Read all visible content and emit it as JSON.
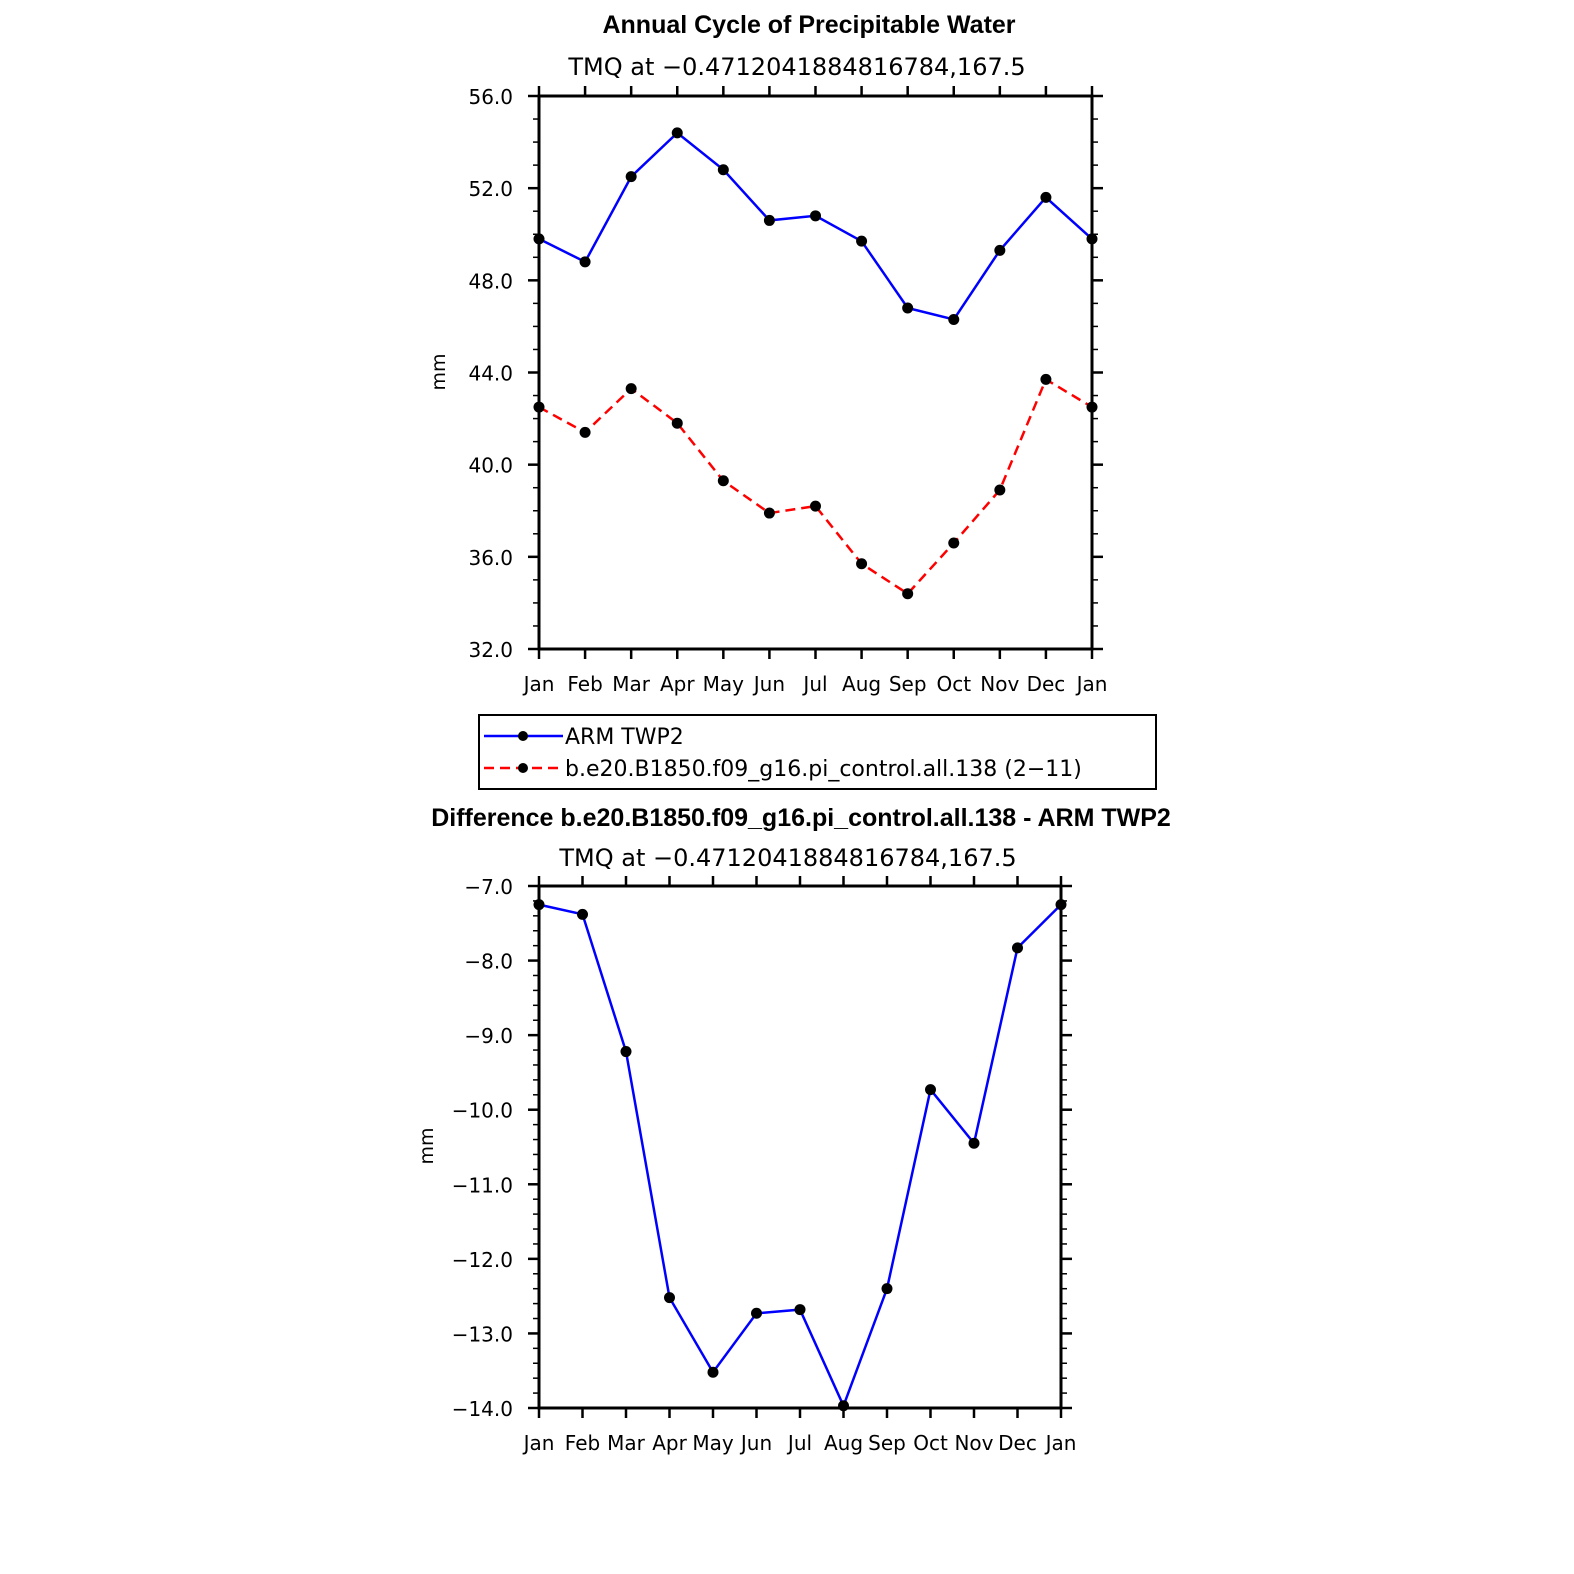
{
  "chart_data": [
    {
      "type": "line",
      "title": "Annual Cycle of Precipitable Water",
      "subtitle": "TMQ  at  −0.4712041884816784,167.5",
      "ylabel": "mm",
      "xlabel": "",
      "categories": [
        "Jan",
        "Feb",
        "Mar",
        "Apr",
        "May",
        "Jun",
        "Jul",
        "Aug",
        "Sep",
        "Oct",
        "Nov",
        "Dec",
        "Jan"
      ],
      "ylim": [
        32.0,
        56.0
      ],
      "yticks": [
        "32.0",
        "36.0",
        "40.0",
        "44.0",
        "48.0",
        "52.0",
        "56.0"
      ],
      "yticks_values": [
        32,
        36,
        40,
        44,
        48,
        52,
        56
      ],
      "legend_position": "below",
      "series": [
        {
          "name": "ARM TWP2",
          "color": "#0000ff",
          "dash": "solid",
          "values": [
            49.8,
            48.8,
            52.5,
            54.4,
            52.8,
            50.6,
            50.8,
            49.7,
            46.8,
            46.3,
            49.3,
            51.6,
            49.8
          ]
        },
        {
          "name": "b.e20.B1850.f09_g16.pi_control.all.138 (2−11)",
          "color": "#ff0000",
          "dash": "dashed",
          "values": [
            42.5,
            41.4,
            43.3,
            41.8,
            39.3,
            37.9,
            38.2,
            35.7,
            34.4,
            36.6,
            38.9,
            43.7,
            42.5
          ]
        }
      ]
    },
    {
      "type": "line",
      "title": "Difference b.e20.B1850.f09_g16.pi_control.all.138 - ARM TWP2",
      "subtitle": "TMQ  at  −0.4712041884816784,167.5",
      "ylabel": "mm",
      "xlabel": "",
      "categories": [
        "Jan",
        "Feb",
        "Mar",
        "Apr",
        "May",
        "Jun",
        "Jul",
        "Aug",
        "Sep",
        "Oct",
        "Nov",
        "Dec",
        "Jan"
      ],
      "ylim": [
        -14.0,
        -7.0
      ],
      "yticks": [
        "−14.0",
        "−13.0",
        "−12.0",
        "−11.0",
        "−10.0",
        "−9.0",
        "−8.0",
        "−7.0"
      ],
      "yticks_values": [
        -14,
        -13,
        -12,
        -11,
        -10,
        -9,
        -8,
        -7
      ],
      "series": [
        {
          "name": "Difference",
          "color": "#0000ff",
          "dash": "solid",
          "values": [
            -7.25,
            -7.38,
            -9.22,
            -12.52,
            -13.52,
            -12.73,
            -12.68,
            -13.97,
            -12.4,
            -9.73,
            -10.45,
            -7.83,
            -7.25
          ]
        }
      ]
    }
  ]
}
